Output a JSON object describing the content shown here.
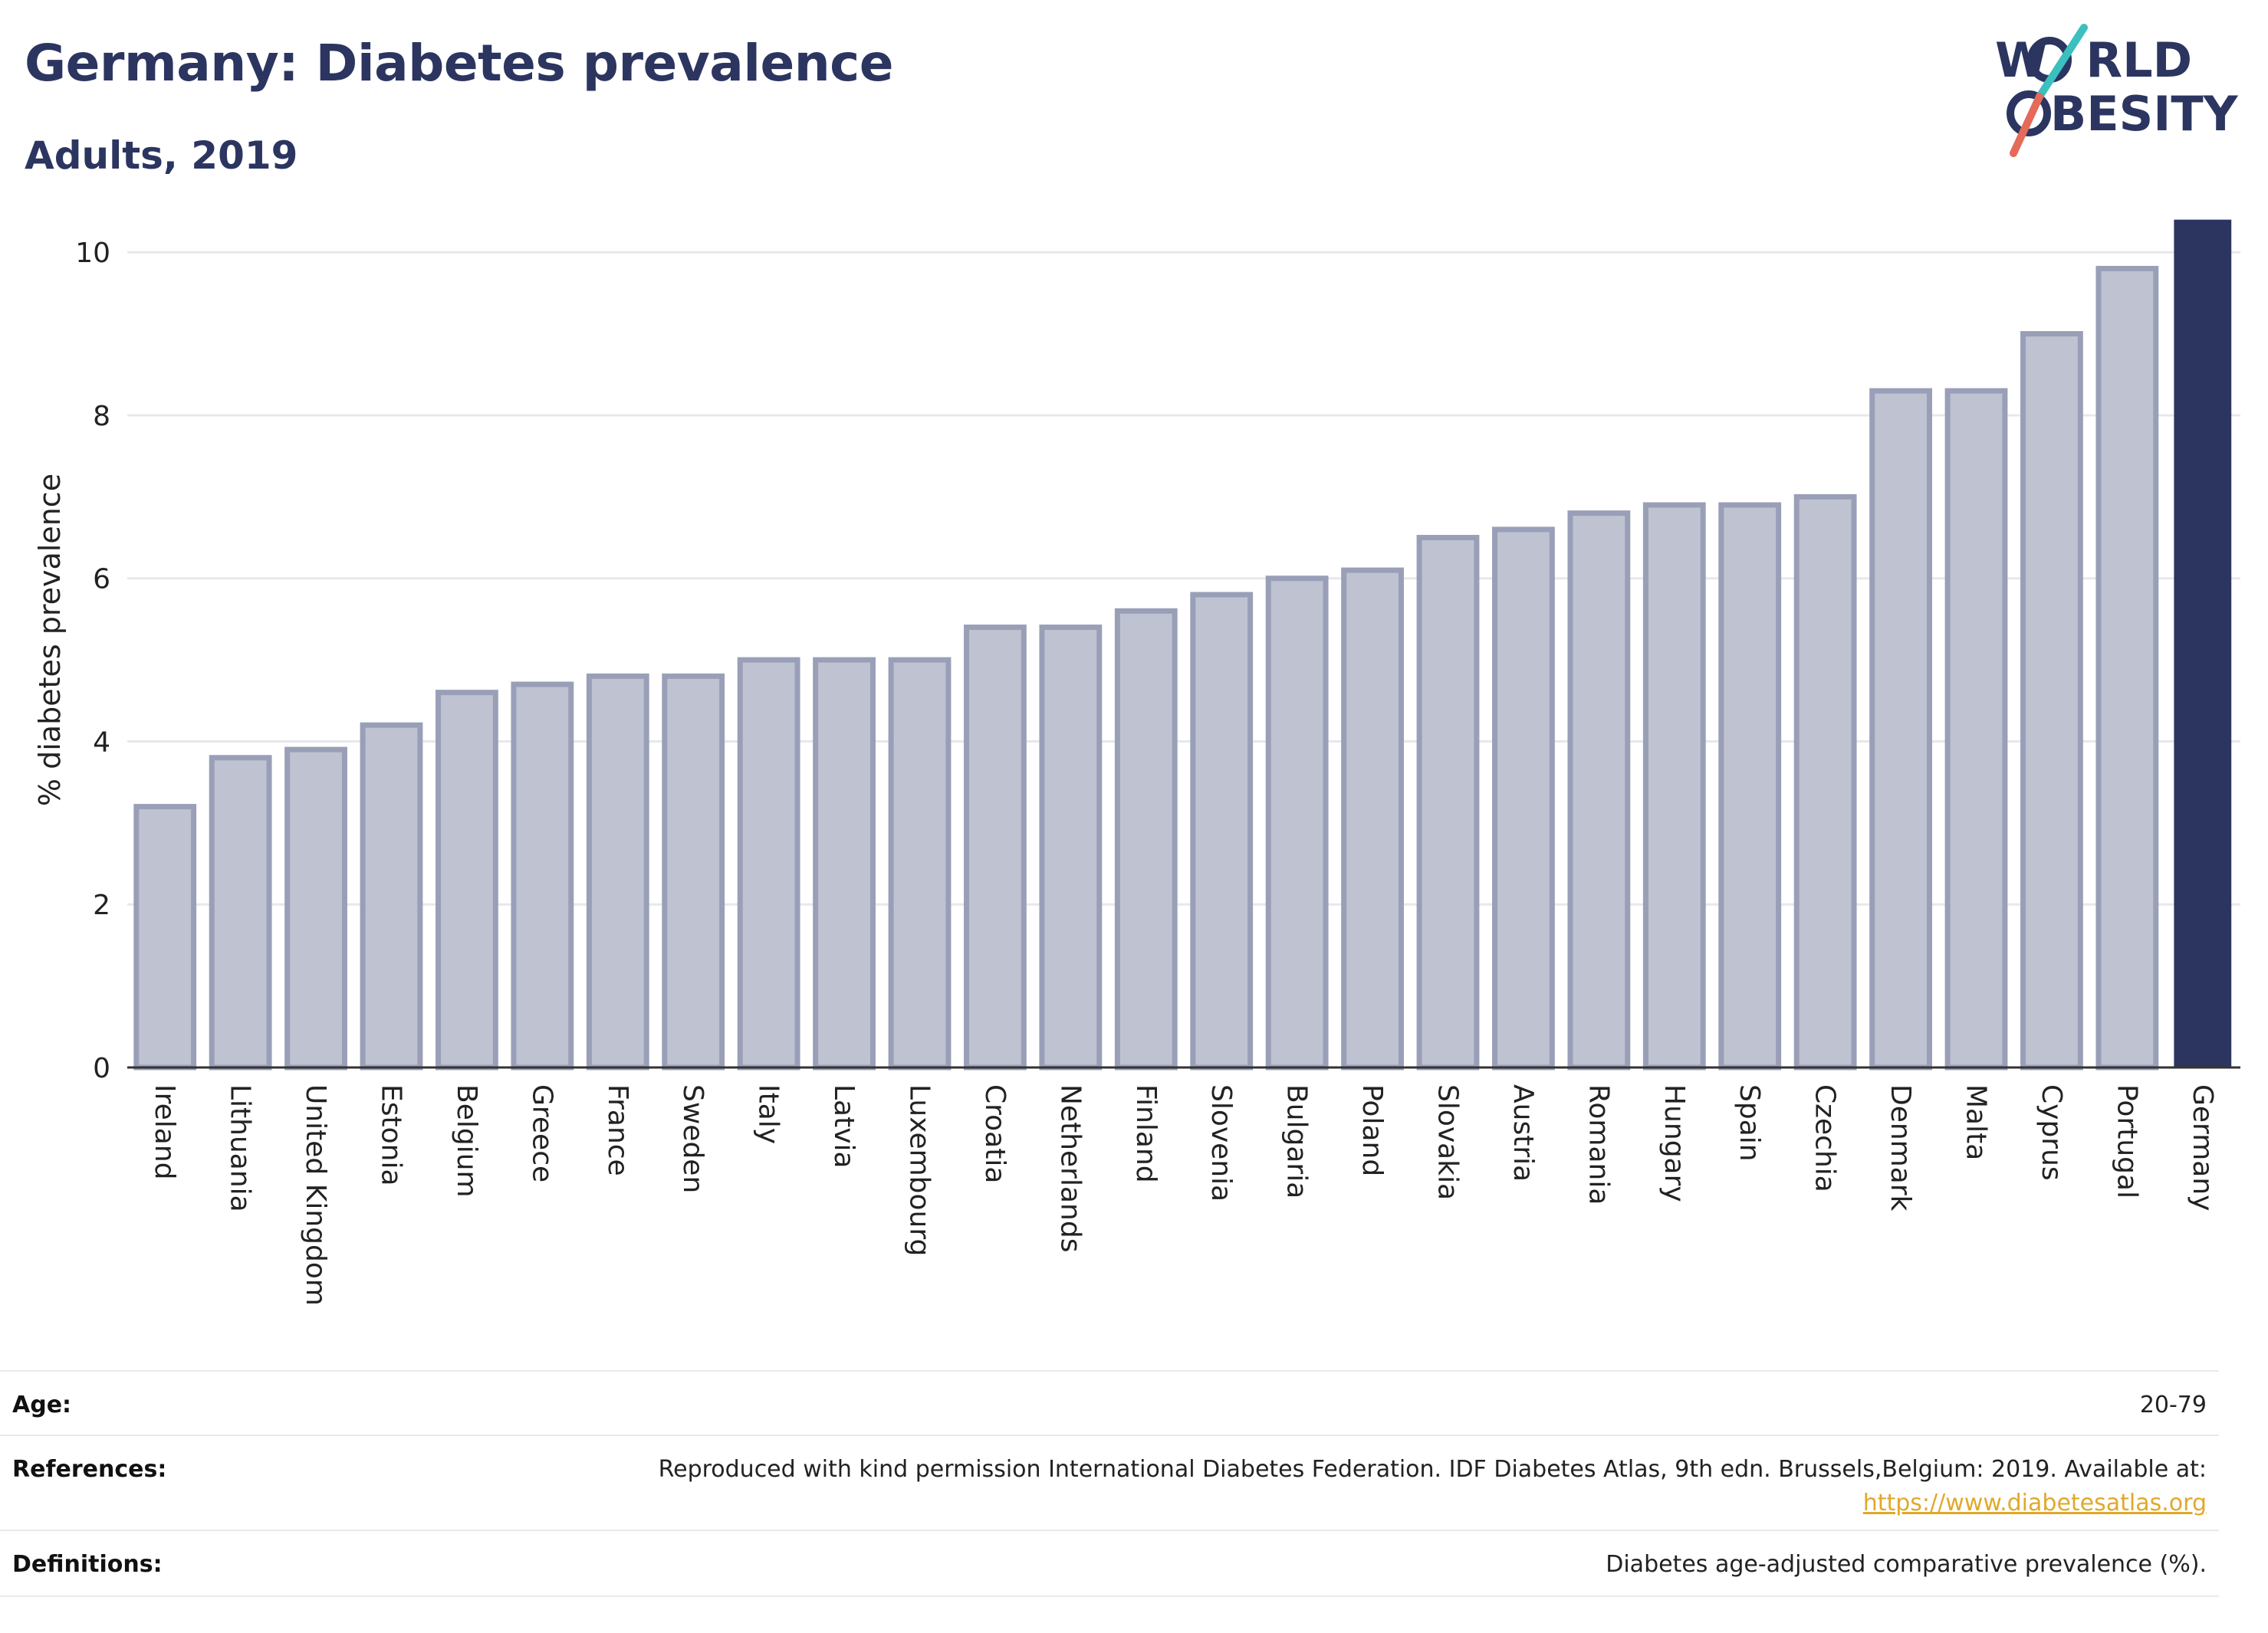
{
  "header": {
    "title": "Germany: Diabetes prevalence",
    "subtitle": "Adults, 2019"
  },
  "logo": {
    "line1": "W",
    "line1b": "RLD",
    "line2": "BESITY",
    "text_color": "#2b3560",
    "slash_top_color": "#3bbfbf",
    "slash_bottom_color": "#e46a5a"
  },
  "colors": {
    "bar": "#bfc2d0",
    "bar_border": "#9a9fb8",
    "highlight": "#2b3560",
    "grid": "#e6e8ec",
    "axis": "#333333"
  },
  "chart_data": {
    "type": "bar",
    "ylabel": "% diabetes prevalence",
    "ylim": [
      0,
      10.5
    ],
    "yticks": [
      0,
      2,
      4,
      6,
      8,
      10
    ],
    "grid": true,
    "highlight": "Germany",
    "categories": [
      "Ireland",
      "Lithuania",
      "United Kingdom",
      "Estonia",
      "Belgium",
      "Greece",
      "France",
      "Sweden",
      "Italy",
      "Latvia",
      "Luxembourg",
      "Croatia",
      "Netherlands",
      "Finland",
      "Slovenia",
      "Bulgaria",
      "Poland",
      "Slovakia",
      "Austria",
      "Romania",
      "Hungary",
      "Spain",
      "Czechia",
      "Denmark",
      "Malta",
      "Cyprus",
      "Portugal",
      "Germany"
    ],
    "values": [
      3.2,
      3.8,
      3.9,
      4.2,
      4.6,
      4.7,
      4.8,
      4.8,
      5.0,
      5.0,
      5.0,
      5.4,
      5.4,
      5.6,
      5.8,
      6.0,
      6.1,
      6.5,
      6.6,
      6.8,
      6.9,
      6.9,
      7.0,
      8.3,
      8.3,
      9.0,
      9.8,
      10.4
    ]
  },
  "meta": {
    "age_label": "Age:",
    "age_value": "20-79",
    "references_label": "References:",
    "references_value": "Reproduced with kind permission International Diabetes Federation. IDF Diabetes Atlas, 9th edn. Brussels,Belgium: 2019. Available at:",
    "references_link": "https://www.diabetesatlas.org",
    "definitions_label": "Definitions:",
    "definitions_value": "Diabetes age-adjusted comparative prevalence (%)."
  }
}
